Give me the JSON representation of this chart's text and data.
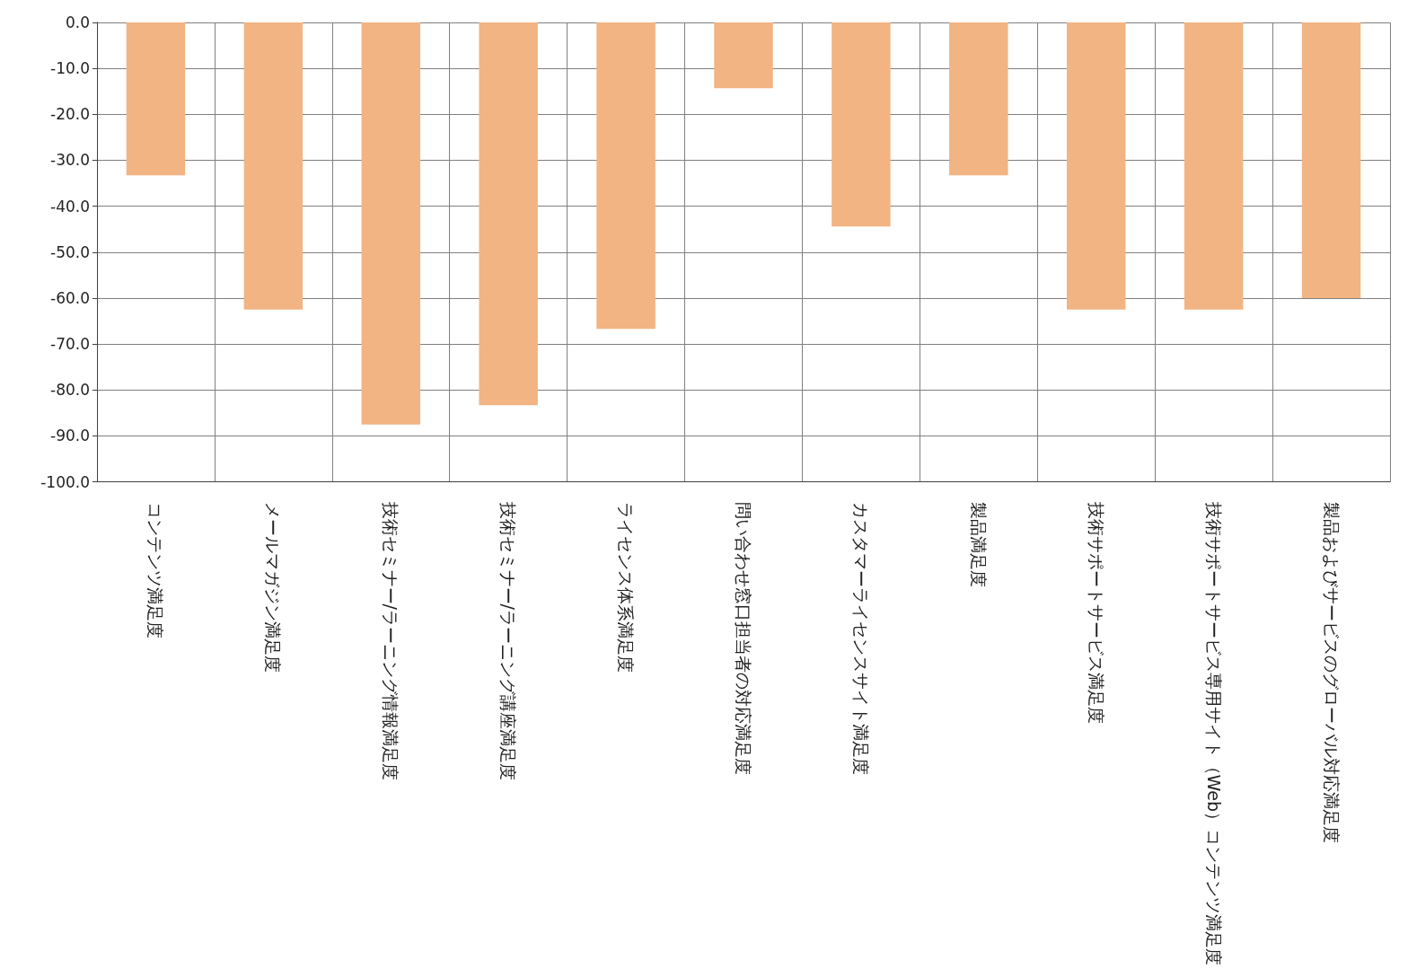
{
  "chart_data": {
    "type": "bar",
    "categories": [
      "コンテンツ満足度",
      "メールマガジン満足度",
      "技術セミナー/ラーニング情報満足度",
      "技術セミナー/ラーニング講座満足度",
      "ライセンス体系満足度",
      "問い合わせ窓口担当者の対応満足度",
      "カスタマーライセンスサイト満足度",
      "製品満足度",
      "技術サポートサービス満足度",
      "技術サポートサービス専用サイト（Web）コンテンツ満足度",
      "製品およびサービスのグローバル対応満足度"
    ],
    "values": [
      -33.3,
      -62.5,
      -87.5,
      -83.3,
      -66.7,
      -14.3,
      -44.4,
      -33.3,
      -62.5,
      -62.5,
      -60.0
    ],
    "color": "#f2b482",
    "ylim": [
      -100,
      0
    ],
    "yticks": [
      {
        "value": 0,
        "label": "0.0"
      },
      {
        "value": -10,
        "label": "-10.0"
      },
      {
        "value": -20,
        "label": "-20.0"
      },
      {
        "value": -30,
        "label": "-30.0"
      },
      {
        "value": -40,
        "label": "-40.0"
      },
      {
        "value": -50,
        "label": "-50.0"
      },
      {
        "value": -60,
        "label": "-60.0"
      },
      {
        "value": -70,
        "label": "-70.0"
      },
      {
        "value": -80,
        "label": "-80.0"
      },
      {
        "value": -90,
        "label": "-90.0"
      },
      {
        "value": -100,
        "label": "-100.0"
      }
    ],
    "grid": true
  }
}
